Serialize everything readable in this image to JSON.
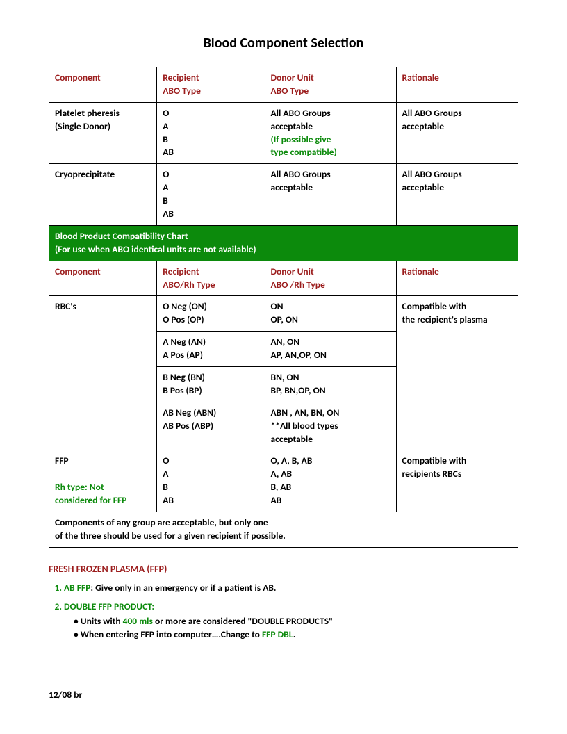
{
  "title": "Blood Component Selection",
  "headers1": {
    "component": "Component",
    "recipient_l1": "Recipient",
    "recipient_l2": "ABO Type",
    "donor_l1": "Donor Unit",
    "donor_l2": "ABO Type",
    "rationale": "Rationale"
  },
  "row_platelet": {
    "comp_l1": "Platelet pheresis",
    "comp_l2": "(Single Donor)",
    "recip": "O\nA\nB\nAB",
    "donor_l1": "All ABO Groups",
    "donor_l2": "acceptable",
    "donor_note_l1": "(If possible give",
    "donor_note_l2": "type compatible)",
    "rat_l1": "All ABO Groups",
    "rat_l2": "acceptable"
  },
  "row_cryo": {
    "comp": "Cryoprecipitate",
    "recip": "O\nA\nB\nAB",
    "donor_l1": "All ABO Groups",
    "donor_l2": "acceptable",
    "rat_l1": "All ABO Groups",
    "rat_l2": "acceptable"
  },
  "band": {
    "l1": "Blood Product Compatibility Chart",
    "l2": "(For use when ABO identical units are not available)"
  },
  "headers2": {
    "component": "Component",
    "recipient_l1": "Recipient",
    "recipient_l2": "ABO/Rh Type",
    "donor_l1": "Donor Unit",
    "donor_l2": "ABO /Rh Type",
    "rationale": "Rationale"
  },
  "rbc": {
    "comp": "RBC's",
    "r1_recip": "O Neg  (ON)\nO Pos   (OP)",
    "r1_donor": "ON\nOP, ON",
    "r2_recip": "A Neg   (AN)\nA Pos    (AP)",
    "r2_donor": "AN, ON\nAP, AN,OP, ON",
    "r3_recip": "B Neg   (BN)\nB Pos    (BP)",
    "r3_donor": "BN, ON\nBP, BN,OP, ON",
    "r4_recip": "AB Neg (ABN)\nAB Pos  (ABP)",
    "r4_donor": "ABN , AN, BN, ON\n**All blood types\nacceptable",
    "rat_l1": "Compatible with",
    "rat_l2": "the recipient's plasma"
  },
  "ffp": {
    "comp": "FFP",
    "note_l1": "Rh type: Not",
    "note_l2": "considered for FFP",
    "recip": "O\nA\nB\nAB",
    "donor": "O, A, B, AB\nA, AB\nB, AB\nAB",
    "rat_l1": "Compatible with",
    "rat_l2": "recipients RBCs"
  },
  "footnote": {
    "l1": "Components of any group are acceptable, but only one",
    "l2": "of the three should be used for a given recipient if possible."
  },
  "section_head": "FRESH FROZEN PLASMA  (FFP)",
  "note1_label": "AB FFP",
  "note1_text": ":   Give only in an emergency or if a patient is AB.",
  "note2_label": "DOUBLE FFP PRODUCT:",
  "note2_b1a": "• Units with ",
  "note2_b1_green": "400 mls",
  "note2_b1b": " or more are considered \"DOUBLE PRODUCTS\"",
  "note2_b2a": "• When entering FFP into computer….Change to ",
  "note2_b2_green": "FFP DBL",
  "note2_b2b": ".",
  "footer": "12/08   br"
}
